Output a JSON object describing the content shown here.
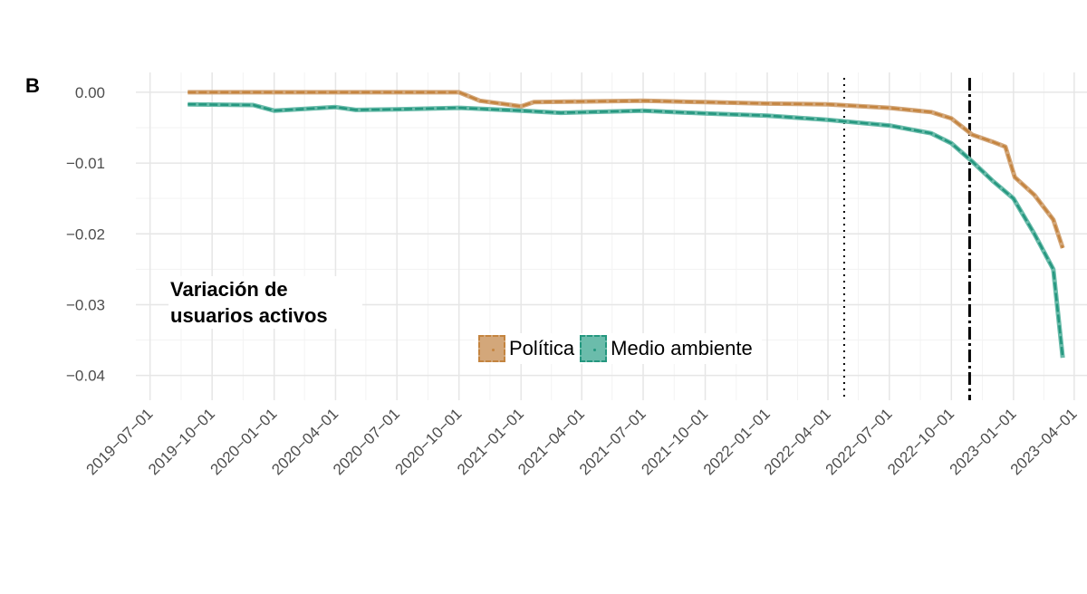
{
  "chart_data": {
    "type": "line",
    "panel_label": "B",
    "annotation": "Variación de usuarios activos",
    "xlabel": "",
    "ylabel": "",
    "grid": true,
    "legend_position": "bottom-center",
    "ylim": [
      -0.0435,
      0.0028
    ],
    "xlim": [
      "2019-06-10",
      "2023-04-20"
    ],
    "y_ticks": [
      0.0,
      -0.01,
      -0.02,
      -0.03,
      -0.04
    ],
    "y_tick_labels": [
      "0.00",
      "−0.01",
      "−0.02",
      "−0.03",
      "−0.04"
    ],
    "x_ticks": [
      "2019-07-01",
      "2019-10-01",
      "2020-01-01",
      "2020-04-01",
      "2020-07-01",
      "2020-10-01",
      "2021-01-01",
      "2021-04-01",
      "2021-07-01",
      "2021-10-01",
      "2022-01-01",
      "2022-04-01",
      "2022-07-01",
      "2022-10-01",
      "2023-01-01",
      "2023-04-01"
    ],
    "x_tick_labels": [
      "2019−07−01",
      "2019−10−01",
      "2020−01−01",
      "2020−04−01",
      "2020−07−01",
      "2020−10−01",
      "2021−01−01",
      "2021−04−01",
      "2021−07−01",
      "2021−10−01",
      "2022−01−01",
      "2022−04−01",
      "2022−07−01",
      "2022−10−01",
      "2023−01−01",
      "2023−04−01"
    ],
    "vlines": [
      {
        "x": "2022-04-25",
        "style": "dotted"
      },
      {
        "x": "2022-10-28",
        "style": "dashdot"
      }
    ],
    "series": [
      {
        "name": "Política",
        "color": "#c4843f",
        "fill": "#d3a77a",
        "points": [
          [
            "2019-08-26",
            0.0
          ],
          [
            "2020-01-01",
            0.0
          ],
          [
            "2020-06-01",
            0.0
          ],
          [
            "2020-10-01",
            0.0
          ],
          [
            "2020-11-01",
            -0.0012
          ],
          [
            "2020-12-10",
            -0.0017
          ],
          [
            "2021-01-01",
            -0.002
          ],
          [
            "2021-01-20",
            -0.0014
          ],
          [
            "2021-04-01",
            -0.0013
          ],
          [
            "2021-07-01",
            -0.0012
          ],
          [
            "2021-10-01",
            -0.0014
          ],
          [
            "2022-01-01",
            -0.0016
          ],
          [
            "2022-04-01",
            -0.0017
          ],
          [
            "2022-07-01",
            -0.0022
          ],
          [
            "2022-09-01",
            -0.0028
          ],
          [
            "2022-10-01",
            -0.0037
          ],
          [
            "2022-11-01",
            -0.006
          ],
          [
            "2022-12-01",
            -0.007
          ],
          [
            "2022-12-20",
            -0.0077
          ],
          [
            "2023-01-03",
            -0.012
          ],
          [
            "2023-02-01",
            -0.0145
          ],
          [
            "2023-03-01",
            -0.018
          ],
          [
            "2023-03-15",
            -0.022
          ]
        ]
      },
      {
        "name": "Medio ambiente",
        "color": "#25977f",
        "fill": "#6bbcab",
        "points": [
          [
            "2019-08-26",
            -0.0017
          ],
          [
            "2019-12-01",
            -0.0018
          ],
          [
            "2020-01-01",
            -0.0026
          ],
          [
            "2020-04-01",
            -0.0021
          ],
          [
            "2020-05-01",
            -0.0025
          ],
          [
            "2020-07-01",
            -0.0024
          ],
          [
            "2020-10-01",
            -0.0022
          ],
          [
            "2021-01-01",
            -0.0026
          ],
          [
            "2021-03-01",
            -0.0029
          ],
          [
            "2021-07-01",
            -0.0026
          ],
          [
            "2021-10-01",
            -0.003
          ],
          [
            "2022-01-01",
            -0.0033
          ],
          [
            "2022-04-01",
            -0.0039
          ],
          [
            "2022-07-01",
            -0.0047
          ],
          [
            "2022-09-01",
            -0.0058
          ],
          [
            "2022-10-01",
            -0.0072
          ],
          [
            "2022-11-01",
            -0.0098
          ],
          [
            "2022-12-01",
            -0.0125
          ],
          [
            "2023-01-01",
            -0.015
          ],
          [
            "2023-02-01",
            -0.02
          ],
          [
            "2023-03-01",
            -0.025
          ],
          [
            "2023-03-15",
            -0.0375
          ]
        ]
      }
    ]
  }
}
